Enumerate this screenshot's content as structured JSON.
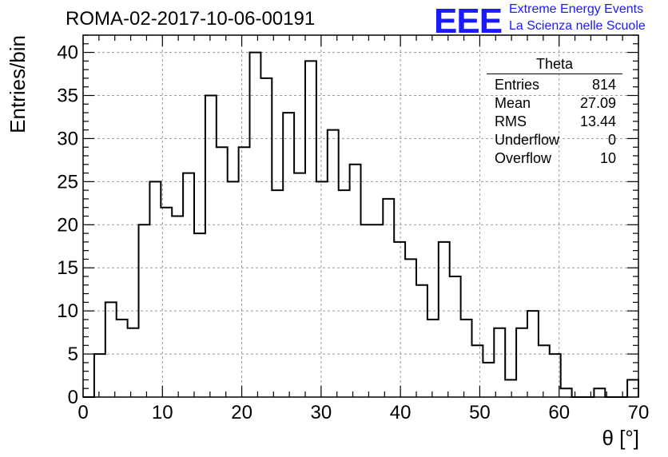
{
  "title": "ROMA-02-2017-10-06-00191",
  "logo": {
    "mark": "EEE",
    "line1": "Extreme Energy Events",
    "line2": "La Scienza nelle Scuole",
    "color": "#1a1aff"
  },
  "stats_box": {
    "title": "Theta",
    "rows": [
      {
        "label": "Entries",
        "value": "814"
      },
      {
        "label": "Mean",
        "value": "27.09"
      },
      {
        "label": "RMS",
        "value": "13.44"
      },
      {
        "label": "Underflow",
        "value": "0"
      },
      {
        "label": "Overflow",
        "value": "10"
      }
    ]
  },
  "chart_data": {
    "type": "bar",
    "style": "step-histogram",
    "xlabel": "θ [°]",
    "ylabel": "Entries/bin",
    "xlim": [
      0,
      70
    ],
    "ylim": [
      0,
      42
    ],
    "bin_width": 1.4,
    "x_ticks": [
      0,
      10,
      20,
      30,
      40,
      50,
      60,
      70
    ],
    "y_ticks": [
      0,
      5,
      10,
      15,
      20,
      25,
      30,
      35,
      40
    ],
    "grid": true,
    "line_color": "#000000",
    "values": [
      0,
      5,
      11,
      9,
      8,
      20,
      25,
      22,
      21,
      26,
      19,
      35,
      29,
      25,
      29,
      40,
      37,
      24,
      33,
      26,
      39,
      25,
      31,
      24,
      27,
      20,
      20,
      23,
      18,
      16,
      13,
      9,
      18,
      14,
      9,
      6,
      4,
      8,
      2,
      8,
      10,
      6,
      5,
      1,
      0,
      0,
      1,
      0,
      0,
      2
    ]
  }
}
